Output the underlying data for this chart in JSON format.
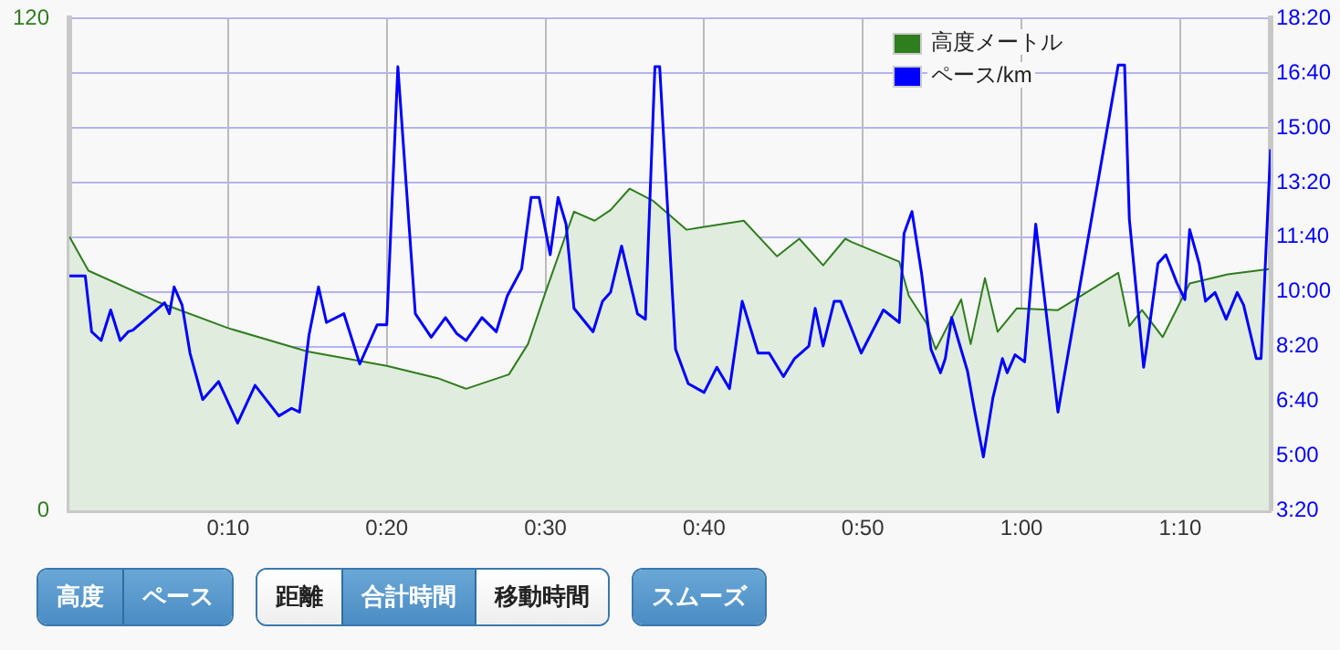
{
  "chart_data": {
    "type": "area",
    "grid": true,
    "legend": "top right",
    "xlim": [
      0,
      75.7
    ],
    "xticks": [
      {
        "value": 10,
        "label": "0:10"
      },
      {
        "value": 20,
        "label": "0:20"
      },
      {
        "value": 30,
        "label": "0:30"
      },
      {
        "value": 40,
        "label": "0:40"
      },
      {
        "value": 50,
        "label": "0:50"
      },
      {
        "value": 60,
        "label": "1:00"
      },
      {
        "value": 70,
        "label": "1:10"
      }
    ],
    "ylim": [
      0,
      120
    ],
    "yticks": [
      0,
      120
    ],
    "y2lim": [
      200,
      1100
    ],
    "y2ticks": [
      {
        "value": 200,
        "label": "3:20"
      },
      {
        "value": 300,
        "label": "5:00"
      },
      {
        "value": 400,
        "label": "6:40"
      },
      {
        "value": 500,
        "label": "8:20"
      },
      {
        "value": 600,
        "label": "10:00"
      },
      {
        "value": 700,
        "label": "11:40"
      },
      {
        "value": 800,
        "label": "13:20"
      },
      {
        "value": 900,
        "label": "15:00"
      },
      {
        "value": 1000,
        "label": "16:40"
      },
      {
        "value": 1100,
        "label": "18:20"
      }
    ],
    "series": [
      {
        "name": "高度メートル",
        "type": "area",
        "color": "#2e7d1e",
        "x": [
          0,
          1.2,
          5.5,
          10,
          15,
          20,
          23.2,
          25,
          27.7,
          28.9,
          30,
          31.8,
          33.1,
          34.1,
          35.3,
          36.8,
          38.9,
          42.5,
          44.6,
          46,
          47.5,
          48.9,
          49.3,
          52.3,
          52.9,
          54,
          54.6,
          56.2,
          56.8,
          57.7,
          58.5,
          59.7,
          62.3,
          66.1,
          66.8,
          67.6,
          68.9,
          70.6,
          73,
          75.6
        ],
        "values": [
          66.8,
          58.5,
          51,
          44.5,
          38.8,
          35.3,
          32.3,
          29.7,
          33.2,
          40.6,
          53.2,
          72.9,
          70.7,
          73.3,
          78.5,
          75.5,
          68.5,
          70.7,
          62,
          66.3,
          59.8,
          66.3,
          65.5,
          60.7,
          52.4,
          45.8,
          39.3,
          51.5,
          40.6,
          56.7,
          43.6,
          49.3,
          48.9,
          58,
          45,
          48.9,
          42.3,
          55.4,
          57.6,
          58.9
        ]
      },
      {
        "name": "ペース/km",
        "type": "line",
        "axis": "y2",
        "color": "#0000ff",
        "x": [
          0,
          1,
          1.4,
          2,
          2.6,
          3.2,
          3.7,
          4,
          5.2,
          6,
          6.3,
          6.6,
          7.1,
          7.6,
          8.4,
          9.4,
          10.6,
          11.7,
          13.2,
          14,
          14.5,
          15.1,
          15.7,
          16.2,
          17.3,
          18.3,
          19.4,
          20,
          20.7,
          21.8,
          22.8,
          23.7,
          24.4,
          25,
          26,
          26.9,
          27.6,
          28.5,
          29.1,
          29.6,
          30.3,
          30.8,
          31.3,
          31.8,
          33,
          33.6,
          34.1,
          34.8,
          35.8,
          36.3,
          36.9,
          37.2,
          38.2,
          39,
          40,
          40.8,
          41.6,
          42.4,
          43.4,
          44.1,
          45,
          45.7,
          46.6,
          47,
          47.5,
          48.2,
          48.6,
          49.9,
          51.3,
          52.3,
          52.6,
          53.1,
          53.7,
          54.3,
          54.9,
          55.2,
          55.6,
          56.1,
          56.6,
          57,
          57.6,
          58.2,
          58.8,
          59.1,
          59.6,
          60.2,
          60.9,
          62.3,
          66.1,
          66.5,
          66.8,
          67.7,
          67.9,
          68.6,
          69.1,
          69.8,
          70.3,
          70.6,
          71.2,
          71.6,
          72.2,
          72.9,
          73.6,
          74,
          74.8,
          75.1,
          75.7
        ],
        "values": [
          629,
          629,
          527,
          511,
          567,
          511,
          527,
          530,
          560,
          580,
          560,
          609,
          576,
          488,
          403,
          436,
          360,
          429,
          373,
          387,
          380,
          521,
          609,
          544,
          560,
          468,
          540,
          540,
          1012,
          560,
          517,
          553,
          524,
          511,
          553,
          527,
          593,
          642,
          773,
          773,
          668,
          773,
          724,
          570,
          527,
          583,
          599,
          684,
          560,
          550,
          1012,
          1012,
          495,
          432,
          416,
          462,
          423,
          583,
          488,
          488,
          445,
          478,
          501,
          570,
          501,
          583,
          583,
          488,
          567,
          544,
          707,
          747,
          635,
          495,
          452,
          478,
          553,
          504,
          455,
          390,
          298,
          406,
          478,
          452,
          485,
          472,
          724,
          380,
          1015,
          1015,
          733,
          462,
          501,
          652,
          668,
          616,
          586,
          714,
          652,
          583,
          599,
          550,
          599,
          576,
          478,
          478,
          861
        ]
      }
    ],
    "annotations": [
      "高度",
      "ペース",
      "距離",
      "合計時間",
      "移動時間",
      "スムーズ"
    ]
  }
}
